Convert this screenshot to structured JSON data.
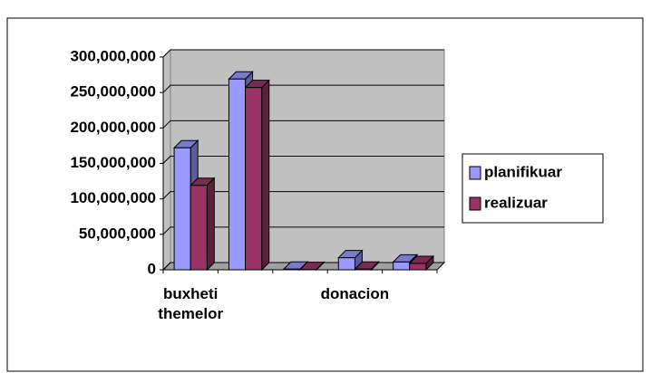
{
  "chart_data": {
    "type": "bar3d",
    "categories": [
      "buxheti themelor",
      null,
      null,
      "donacion",
      null
    ],
    "series": [
      {
        "name": "planifikuar",
        "color": "#9999ff",
        "values": [
          172000000,
          269000000,
          1000000,
          17000000,
          11000000
        ]
      },
      {
        "name": "realizuar",
        "color": "#993366",
        "values": [
          119000000,
          257000000,
          500000,
          1000000,
          9000000
        ]
      }
    ],
    "ylim": [
      0,
      300000000
    ],
    "yticks": [
      {
        "value": 0,
        "label": "0"
      },
      {
        "value": 50000000,
        "label": "50,000,000"
      },
      {
        "value": 100000000,
        "label": "100,000,000"
      },
      {
        "value": 150000000,
        "label": "150,000,000"
      },
      {
        "value": 200000000,
        "label": "200,000,000"
      },
      {
        "value": 250000000,
        "label": "250,000,000"
      },
      {
        "value": 300000000,
        "label": "300,000,000"
      }
    ],
    "grid": true,
    "legend": "right"
  }
}
